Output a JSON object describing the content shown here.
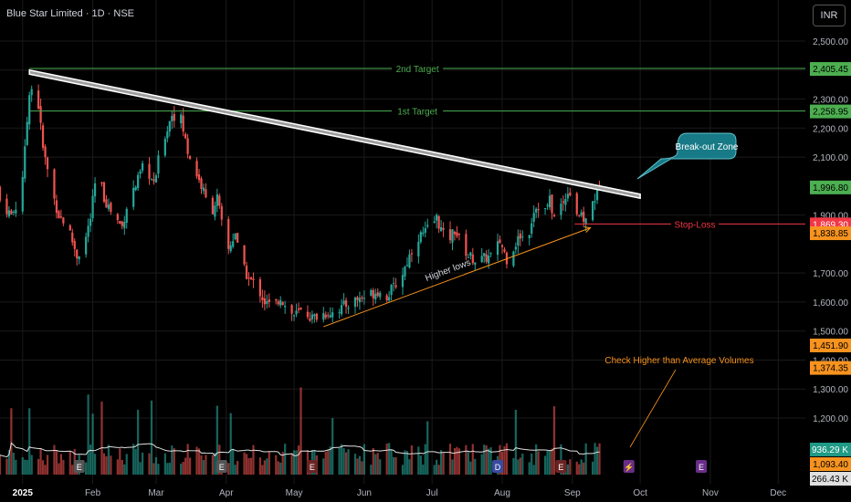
{
  "header": {
    "title": "Blue Star Limited · 1D · NSE",
    "currency_button": "INR"
  },
  "colors": {
    "up": "#26a69a",
    "down": "#ef5350",
    "target": "#4caf50",
    "stop": "#f23645",
    "orange": "#f7931e",
    "zone": "#177a86",
    "trend_fill": "#9e9e9e"
  },
  "chart_data": {
    "type": "candlestick",
    "title": "Blue Star Limited · 1D · NSE",
    "y_axis": {
      "range": [
        1230,
        2560
      ],
      "ticks": [
        "2,500.00",
        "2,400.00",
        "2,300.00",
        "2,200.00",
        "2,100.00",
        "1,900.00",
        "1,700.00",
        "1,600.00",
        "1,500.00",
        "1,400.00",
        "1,300.00",
        "1,200.00"
      ],
      "tick_values": [
        2500,
        2400,
        2300,
        2200,
        2100,
        1900,
        1700,
        1600,
        1500,
        1400,
        1300,
        1200
      ]
    },
    "x_axis": {
      "labels": [
        "2025",
        "Feb",
        "Mar",
        "Apr",
        "May",
        "Jun",
        "Jul",
        "Aug",
        "Sep",
        "Oct",
        "Nov",
        "Dec"
      ],
      "label_days": [
        0,
        31,
        59,
        90,
        120,
        151,
        181,
        212,
        243,
        273,
        304,
        334
      ],
      "range_days": [
        -10,
        346
      ]
    },
    "price_path": {
      "keypoints_day_close": [
        [
          -10,
          1950
        ],
        [
          -5,
          1900
        ],
        [
          -1,
          1955
        ],
        [
          1,
          2120
        ],
        [
          3,
          2330
        ],
        [
          6,
          2350
        ],
        [
          9,
          2130
        ],
        [
          13,
          1980
        ],
        [
          16,
          1900
        ],
        [
          20,
          1860
        ],
        [
          24,
          1760
        ],
        [
          27,
          1790
        ],
        [
          30,
          1890
        ],
        [
          33,
          2060
        ],
        [
          36,
          1960
        ],
        [
          40,
          1900
        ],
        [
          44,
          1860
        ],
        [
          47,
          1965
        ],
        [
          50,
          2000
        ],
        [
          54,
          2080
        ],
        [
          58,
          2000
        ],
        [
          61,
          2130
        ],
        [
          64,
          2200
        ],
        [
          66,
          2250
        ],
        [
          70,
          2230
        ],
        [
          73,
          2120
        ],
        [
          76,
          2060
        ],
        [
          80,
          1980
        ],
        [
          83,
          1900
        ],
        [
          86,
          1960
        ],
        [
          88,
          1870
        ],
        [
          91,
          1780
        ],
        [
          94,
          1840
        ],
        [
          96,
          1740
        ],
        [
          100,
          1680
        ],
        [
          104,
          1650
        ],
        [
          107,
          1600
        ],
        [
          111,
          1580
        ],
        [
          114,
          1620
        ],
        [
          117,
          1570
        ],
        [
          120,
          1555
        ],
        [
          124,
          1570
        ],
        [
          128,
          1545
        ],
        [
          133,
          1560
        ],
        [
          138,
          1570
        ],
        [
          143,
          1590
        ],
        [
          148,
          1610
        ],
        [
          152,
          1620
        ],
        [
          157,
          1640
        ],
        [
          160,
          1610
        ],
        [
          164,
          1650
        ],
        [
          168,
          1700
        ],
        [
          171,
          1760
        ],
        [
          174,
          1820
        ],
        [
          178,
          1840
        ],
        [
          181,
          1870
        ],
        [
          183,
          1890
        ],
        [
          186,
          1830
        ],
        [
          188,
          1810
        ],
        [
          191,
          1850
        ],
        [
          194,
          1800
        ],
        [
          197,
          1760
        ],
        [
          201,
          1740
        ],
        [
          204,
          1750
        ],
        [
          208,
          1760
        ],
        [
          211,
          1810
        ],
        [
          214,
          1750
        ],
        [
          217,
          1790
        ],
        [
          220,
          1830
        ],
        [
          223,
          1810
        ],
        [
          226,
          1920
        ],
        [
          229,
          1940
        ],
        [
          231,
          1915
        ],
        [
          233,
          1950
        ],
        [
          235,
          1890
        ],
        [
          237,
          1930
        ],
        [
          239,
          1940
        ],
        [
          241,
          1990
        ],
        [
          243,
          1960
        ],
        [
          245,
          1910
        ],
        [
          247,
          1890
        ],
        [
          249,
          1880
        ],
        [
          251,
          1930
        ],
        [
          253,
          1960
        ],
        [
          255,
          1997
        ]
      ],
      "last_close": 1996.8
    },
    "annotations": {
      "second_target": {
        "label": "2nd Target",
        "value": 2405.45,
        "value_label": "2,405.45"
      },
      "first_target": {
        "label": "1st Target",
        "value": 2258.95,
        "value_label": "2,258.95"
      },
      "last_price_label": "1,996.80",
      "stop_loss": {
        "label": "Stop-Loss",
        "value": 1869.3,
        "value_label": "1,869.30"
      },
      "orange_label_1": "1,838.85",
      "orange_label_2": "1,451.90",
      "orange_label_3": "1,374.35",
      "volume_label": "936.29 K",
      "volume_ma_label": "1,093.40",
      "partial_label": "266.43 K",
      "breakout_label": "Break-out Zone",
      "higher_lows_label": "Higher lows",
      "volumes_note": "Check Higher than Average Volumes",
      "trendline": {
        "start": [
          3,
          2400
        ],
        "end": [
          273,
          1972
        ],
        "band_width": 14
      },
      "support_line": {
        "start": [
          133,
          1515
        ],
        "end": [
          251,
          1856
        ]
      }
    },
    "volume": {
      "note": "daily volume bars; bottom pane",
      "last_value_k": 936.29
    }
  }
}
